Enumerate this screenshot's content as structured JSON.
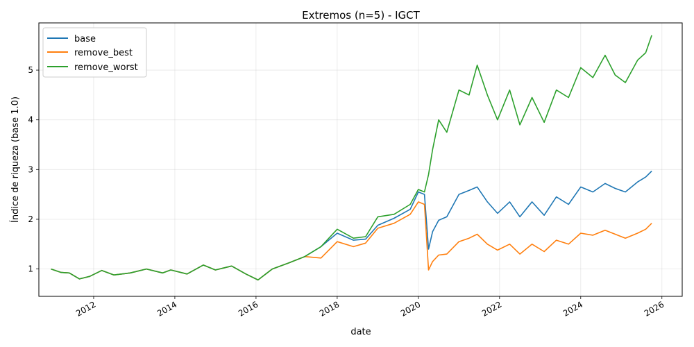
{
  "chart_data": {
    "type": "line",
    "title": "Extremos (n=5) - IGCT",
    "xlabel": "date",
    "ylabel": "Índice de riqueza (base 1.0)",
    "xlim": [
      2010.65,
      2026.5
    ],
    "ylim": [
      0.45,
      5.95
    ],
    "x_ticks": [
      2012,
      2014,
      2016,
      2018,
      2020,
      2022,
      2024,
      2026
    ],
    "x_tick_labels": [
      "2012",
      "2014",
      "2016",
      "2018",
      "2020",
      "2022",
      "2024",
      "2026"
    ],
    "y_ticks": [
      1,
      2,
      3,
      4,
      5
    ],
    "y_tick_labels": [
      "1",
      "2",
      "3",
      "4",
      "5"
    ],
    "grid": true,
    "legend_position": "top-left",
    "series": [
      {
        "name": "base",
        "color": "#1f77b4",
        "x": [
          2010.95,
          2011.2,
          2011.4,
          2011.65,
          2011.9,
          2012.2,
          2012.5,
          2012.9,
          2013.3,
          2013.7,
          2013.9,
          2014.3,
          2014.7,
          2015.0,
          2015.4,
          2015.75,
          2016.05,
          2016.4,
          2016.8,
          2017.2,
          2017.6,
          2018.0,
          2018.4,
          2018.7,
          2019.0,
          2019.4,
          2019.8,
          2020.0,
          2020.15,
          2020.25,
          2020.35,
          2020.5,
          2020.7,
          2021.0,
          2021.25,
          2021.45,
          2021.7,
          2021.95,
          2022.25,
          2022.5,
          2022.8,
          2023.1,
          2023.4,
          2023.7,
          2024.0,
          2024.3,
          2024.6,
          2024.85,
          2025.1,
          2025.4,
          2025.6,
          2025.75
        ],
        "y": [
          1.0,
          0.93,
          0.92,
          0.8,
          0.85,
          0.97,
          0.88,
          0.92,
          1.0,
          0.92,
          0.98,
          0.9,
          1.08,
          0.98,
          1.06,
          0.9,
          0.78,
          1.0,
          1.12,
          1.25,
          1.45,
          1.72,
          1.58,
          1.6,
          1.88,
          2.02,
          2.2,
          2.55,
          2.5,
          1.4,
          1.75,
          1.98,
          2.05,
          2.5,
          2.58,
          2.65,
          2.35,
          2.12,
          2.35,
          2.05,
          2.35,
          2.08,
          2.45,
          2.3,
          2.65,
          2.55,
          2.72,
          2.62,
          2.55,
          2.75,
          2.85,
          2.97
        ]
      },
      {
        "name": "remove_best",
        "color": "#ff7f0e",
        "x": [
          2010.95,
          2011.2,
          2011.4,
          2011.65,
          2011.9,
          2012.2,
          2012.5,
          2012.9,
          2013.3,
          2013.7,
          2013.9,
          2014.3,
          2014.7,
          2015.0,
          2015.4,
          2015.75,
          2016.05,
          2016.4,
          2016.8,
          2017.2,
          2017.6,
          2018.0,
          2018.4,
          2018.7,
          2019.0,
          2019.4,
          2019.8,
          2020.0,
          2020.15,
          2020.25,
          2020.35,
          2020.5,
          2020.7,
          2021.0,
          2021.25,
          2021.45,
          2021.7,
          2021.95,
          2022.25,
          2022.5,
          2022.8,
          2023.1,
          2023.4,
          2023.7,
          2024.0,
          2024.3,
          2024.6,
          2024.85,
          2025.1,
          2025.4,
          2025.6,
          2025.75
        ],
        "y": [
          1.0,
          0.93,
          0.92,
          0.8,
          0.85,
          0.97,
          0.88,
          0.92,
          1.0,
          0.92,
          0.98,
          0.9,
          1.08,
          0.98,
          1.06,
          0.9,
          0.78,
          1.0,
          1.12,
          1.25,
          1.22,
          1.55,
          1.45,
          1.52,
          1.82,
          1.92,
          2.1,
          2.35,
          2.3,
          0.98,
          1.15,
          1.28,
          1.3,
          1.55,
          1.62,
          1.7,
          1.5,
          1.38,
          1.5,
          1.3,
          1.5,
          1.35,
          1.58,
          1.5,
          1.72,
          1.68,
          1.78,
          1.7,
          1.62,
          1.72,
          1.8,
          1.92
        ]
      },
      {
        "name": "remove_worst",
        "color": "#2ca02c",
        "x": [
          2010.95,
          2011.2,
          2011.4,
          2011.65,
          2011.9,
          2012.2,
          2012.5,
          2012.9,
          2013.3,
          2013.7,
          2013.9,
          2014.3,
          2014.7,
          2015.0,
          2015.4,
          2015.75,
          2016.05,
          2016.4,
          2016.8,
          2017.2,
          2017.6,
          2018.0,
          2018.4,
          2018.7,
          2019.0,
          2019.4,
          2019.8,
          2020.0,
          2020.15,
          2020.25,
          2020.35,
          2020.5,
          2020.7,
          2021.0,
          2021.25,
          2021.45,
          2021.7,
          2021.95,
          2022.25,
          2022.5,
          2022.8,
          2023.1,
          2023.4,
          2023.7,
          2024.0,
          2024.3,
          2024.6,
          2024.85,
          2025.1,
          2025.4,
          2025.6,
          2025.75
        ],
        "y": [
          1.0,
          0.93,
          0.92,
          0.8,
          0.85,
          0.97,
          0.88,
          0.92,
          1.0,
          0.92,
          0.98,
          0.9,
          1.08,
          0.98,
          1.06,
          0.9,
          0.78,
          1.0,
          1.12,
          1.25,
          1.45,
          1.8,
          1.62,
          1.65,
          2.05,
          2.1,
          2.3,
          2.6,
          2.55,
          2.9,
          3.4,
          4.0,
          3.75,
          4.6,
          4.5,
          5.1,
          4.5,
          4.0,
          4.6,
          3.9,
          4.45,
          3.95,
          4.6,
          4.45,
          5.05,
          4.85,
          5.3,
          4.9,
          4.75,
          5.2,
          5.35,
          5.7
        ]
      }
    ]
  }
}
